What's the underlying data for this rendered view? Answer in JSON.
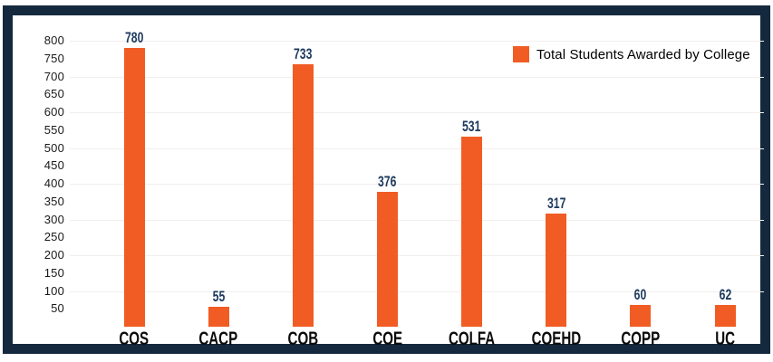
{
  "chart_data": {
    "type": "bar",
    "title": "",
    "categories": [
      "COS",
      "CACP",
      "COB",
      "COE",
      "COLFA",
      "COEHD",
      "COPP",
      "UC"
    ],
    "values": [
      780,
      55,
      733,
      376,
      531,
      317,
      60,
      62
    ],
    "series_name": "Total Students Awarded by College",
    "xlabel": "",
    "ylabel": "",
    "ylim": [
      0,
      800
    ],
    "ytick_step": 50,
    "gridline_step": 100,
    "grid": "horizontal-only",
    "legend_position": "top-right",
    "data_labels": "above-bars",
    "colors": {
      "bar": "#F15C24",
      "frame": "#15293E",
      "value_label": "#1E3A5F",
      "category_label": "#0B0B0B",
      "tick_label": "#1A1A1A",
      "gridline": "#F0EFEC",
      "background": "#FFFFFF"
    }
  },
  "legend": {
    "label": "Total Students Awarded by College"
  }
}
